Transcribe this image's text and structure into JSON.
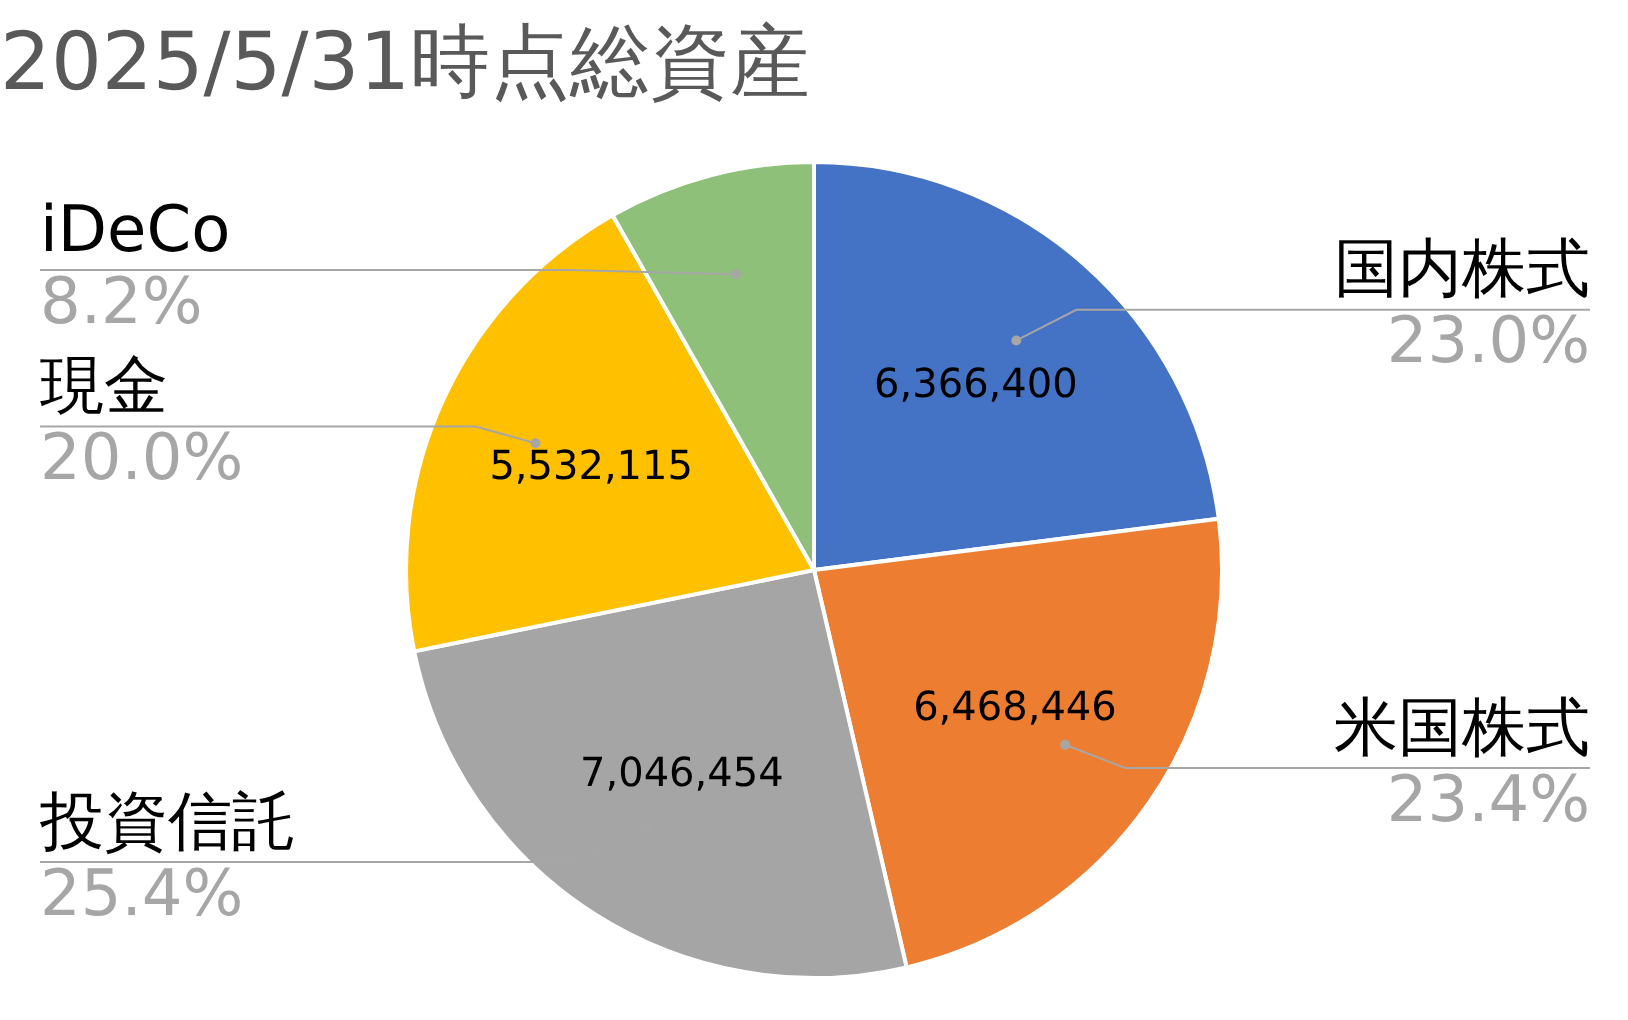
{
  "chart_data": {
    "type": "pie",
    "title": "2025/5/31時点総資産",
    "categories": [
      "国内株式",
      "米国株式",
      "投資信託",
      "現金",
      "iDeCo"
    ],
    "values": [
      6366400,
      6468446,
      7046454,
      5532115,
      2275000
    ],
    "colors": [
      "#4472c4",
      "#ed7d31",
      "#a5a5a5",
      "#ffc000",
      "#8fc07a"
    ],
    "value_labels": [
      "6,366,400",
      "6,468,446",
      "7,046,454",
      "5,532,115",
      null
    ],
    "annotations": [
      {
        "text": "23.0%",
        "x": "国内株式"
      },
      {
        "text": "23.4%",
        "x": "米国株式"
      },
      {
        "text": "25.4%",
        "x": "投資信託"
      },
      {
        "text": "20.0%",
        "x": "現金"
      },
      {
        "text": "8.2%",
        "x": "iDeCo"
      }
    ],
    "legend": false
  }
}
